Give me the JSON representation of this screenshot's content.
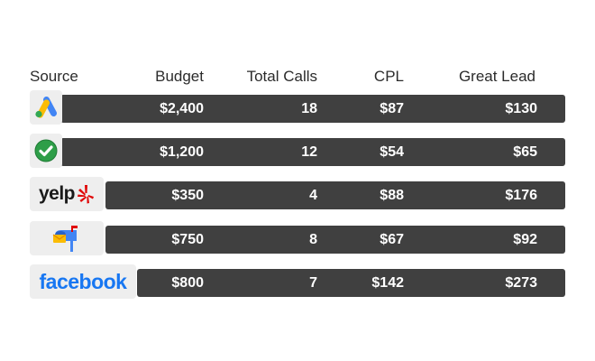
{
  "header": {
    "source": "Source",
    "budget": "Budget",
    "total_calls": "Total Calls",
    "cpl": "CPL",
    "great_lead": "Great Lead"
  },
  "rows": [
    {
      "source_icon": "google-ads-icon",
      "budget": "$2,400",
      "total_calls": "18",
      "cpl": "$87",
      "great_lead": "$130"
    },
    {
      "source_icon": "green-checkmark-icon",
      "budget": "$1,200",
      "total_calls": "12",
      "cpl": "$54",
      "great_lead": "$65"
    },
    {
      "source_icon": "yelp-logo",
      "source_text": "yelp",
      "budget": "$350",
      "total_calls": "4",
      "cpl": "$88",
      "great_lead": "$176"
    },
    {
      "source_icon": "mailbox-icon",
      "budget": "$750",
      "total_calls": "8",
      "cpl": "$67",
      "great_lead": "$92"
    },
    {
      "source_icon": "facebook-logo",
      "source_text": "facebook",
      "budget": "$800",
      "total_calls": "7",
      "cpl": "$142",
      "great_lead": "$273"
    }
  ],
  "colors": {
    "row_bar": "#404040",
    "logo_bg": "#eeeeee",
    "google_blue": "#4285f4",
    "google_yellow": "#fbbc04",
    "google_green": "#34a853",
    "check_green": "#2e9e48",
    "yelp_red": "#e00707",
    "facebook_blue": "#1877f2"
  }
}
